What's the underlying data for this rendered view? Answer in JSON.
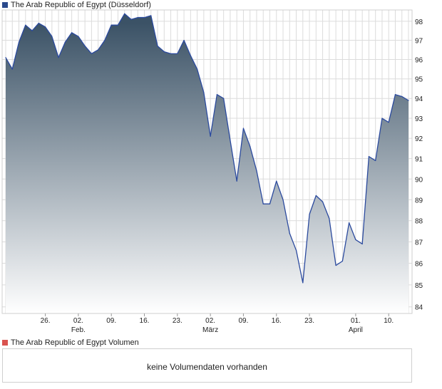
{
  "colors": {
    "price_swatch": "#2a4a8c",
    "volume_swatch": "#d9534f",
    "line": "#2b4a9e",
    "fill_top": "#3b5266",
    "fill_bottom": "#ffffff",
    "grid": "#dcdcdc"
  },
  "chart_data": {
    "type": "area",
    "legend": "The Arab Republic of Egypt (Düsseldorf)",
    "title": "",
    "xlabel": "",
    "ylabel": "",
    "ylim": [
      83.7,
      98.6
    ],
    "y_scale": "log",
    "y_ticks": [
      84,
      85,
      86,
      87,
      88,
      89,
      90,
      91,
      92,
      93,
      94,
      95,
      96,
      97,
      98
    ],
    "x_ticks": [
      {
        "label": "26.",
        "month": "",
        "pos": 6
      },
      {
        "label": "02.",
        "month": "Feb.",
        "pos": 11
      },
      {
        "label": "09.",
        "month": "",
        "pos": 16
      },
      {
        "label": "16.",
        "month": "",
        "pos": 21
      },
      {
        "label": "23.",
        "month": "",
        "pos": 26
      },
      {
        "label": "02.",
        "month": "März",
        "pos": 31
      },
      {
        "label": "09.",
        "month": "",
        "pos": 36
      },
      {
        "label": "16.",
        "month": "",
        "pos": 41
      },
      {
        "label": "23.",
        "month": "",
        "pos": 46
      },
      {
        "label": "01.",
        "month": "April",
        "pos": 53
      },
      {
        "label": "10.",
        "month": "",
        "pos": 58
      }
    ],
    "grid": true,
    "values": [
      96.1,
      95.5,
      96.9,
      97.8,
      97.5,
      97.9,
      97.7,
      97.2,
      96.1,
      96.9,
      97.4,
      97.2,
      96.7,
      96.3,
      96.5,
      97.0,
      97.8,
      97.8,
      98.4,
      98.1,
      98.2,
      98.2,
      98.3,
      96.7,
      96.4,
      96.3,
      96.3,
      97.0,
      96.2,
      95.5,
      94.3,
      92.1,
      94.2,
      94.0,
      91.9,
      89.9,
      92.5,
      91.6,
      90.4,
      88.8,
      88.8,
      89.9,
      89.0,
      87.4,
      86.6,
      85.1,
      88.3,
      89.2,
      88.9,
      88.1,
      85.9,
      86.1,
      87.9,
      87.1,
      86.9,
      91.1,
      90.9,
      93.0,
      92.8,
      94.2,
      94.1,
      93.9
    ]
  },
  "volume": {
    "legend": "The Arab Republic of Egypt Volumen",
    "message": "keine Volumendaten vorhanden"
  }
}
